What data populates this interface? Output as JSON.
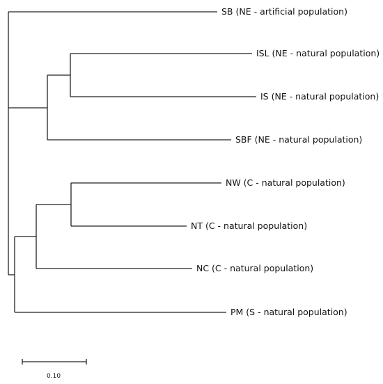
{
  "tree": {
    "leaves": [
      {
        "id": "SB",
        "label": "SB (NE - artificial population)"
      },
      {
        "id": "ISL",
        "label": "ISL (NE - natural population)"
      },
      {
        "id": "IS",
        "label": "IS (NE - natural population)"
      },
      {
        "id": "SBF",
        "label": "SBF (NE - natural population)"
      },
      {
        "id": "NW",
        "label": "NW (C - natural population)"
      },
      {
        "id": "NT",
        "label": "NT (C - natural population)"
      },
      {
        "id": "NC",
        "label": "NC (C - natural population)"
      },
      {
        "id": "PM",
        "label": "PM (S - natural population)"
      }
    ]
  },
  "scale_bar": {
    "label": "0.10"
  }
}
